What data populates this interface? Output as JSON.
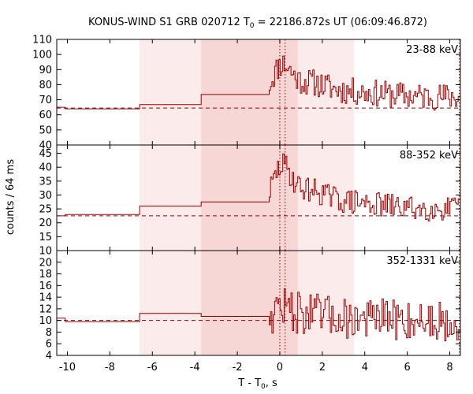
{
  "chart_data": {
    "type": "line",
    "title_prefix": "KONUS-WIND S1 GRB 020712 T",
    "title_sub": "0",
    "title_suffix": " = 22186.872s UT (06:09:46.872)",
    "xlabel_prefix": "T - T",
    "xlabel_sub": "0",
    "xlabel_suffix": ", s",
    "ylabel": "counts / 64 ms",
    "xlim": [
      -10.5,
      8.5
    ],
    "x_ticks": [
      -10,
      -8,
      -6,
      -4,
      -2,
      0,
      2,
      4,
      6,
      8
    ],
    "x_tick_labels": [
      "-10",
      "-8",
      "-6",
      "-4",
      "-2",
      "0",
      "2",
      "4",
      "6",
      "8"
    ],
    "shaded_intervals": [
      {
        "start": -6.6,
        "end": 3.5,
        "level": "light"
      },
      {
        "start": -3.7,
        "end": 0.85,
        "level": "dark"
      }
    ],
    "marker_lines": [
      0.0,
      0.25,
      8.45
    ],
    "colors": {
      "series": "#9b0000",
      "background": "#e05a5a",
      "axis": "#000000"
    },
    "panels": [
      {
        "band": "23-88 keV",
        "ylim": [
          40,
          110
        ],
        "y_ticks": [
          40,
          50,
          60,
          70,
          80,
          90,
          100,
          110
        ],
        "y_tick_labels": [
          "40",
          "50",
          "60",
          "70",
          "80",
          "90",
          "100",
          "110"
        ],
        "background_level": 64.5,
        "coarse_steps": [
          [
            -10.5,
            65.0
          ],
          [
            -10.1,
            64.0
          ],
          [
            -6.6,
            66.8
          ],
          [
            -3.7,
            73.5
          ]
        ],
        "fine_start": -0.5,
        "fine_step": 0.064,
        "base_level": 72,
        "peak_amp": 18,
        "noise": 9,
        "seed": 11,
        "min_value": 42,
        "max_value": 108
      },
      {
        "band": "88-352 keV",
        "ylim": [
          10,
          48
        ],
        "y_ticks": [
          10,
          15,
          20,
          25,
          30,
          35,
          40,
          45
        ],
        "y_tick_labels": [
          "10",
          "15",
          "20",
          "25",
          "30",
          "35",
          "40",
          "45"
        ],
        "background_level": 22.5,
        "coarse_steps": [
          [
            -10.5,
            22.5
          ],
          [
            -10.1,
            23.0
          ],
          [
            -6.6,
            26.0
          ],
          [
            -3.7,
            27.5
          ]
        ],
        "fine_start": -0.5,
        "fine_step": 0.064,
        "base_level": 25,
        "peak_amp": 13,
        "noise": 4.5,
        "seed": 29,
        "min_value": 12,
        "max_value": 47
      },
      {
        "band": "352-1331 keV",
        "ylim": [
          4,
          22
        ],
        "y_ticks": [
          4,
          6,
          8,
          10,
          12,
          14,
          16,
          18,
          20
        ],
        "y_tick_labels": [
          "4",
          "6",
          "8",
          "10",
          "12",
          "14",
          "16",
          "18",
          "20"
        ],
        "background_level": 10.0,
        "coarse_steps": [
          [
            -10.5,
            10.4
          ],
          [
            -10.1,
            9.8
          ],
          [
            -6.6,
            11.2
          ],
          [
            -3.7,
            10.7
          ]
        ],
        "fine_start": -0.5,
        "fine_step": 0.064,
        "base_level": 10,
        "peak_amp": 2,
        "noise": 3.6,
        "seed": 47,
        "min_value": 5,
        "max_value": 19
      }
    ]
  }
}
